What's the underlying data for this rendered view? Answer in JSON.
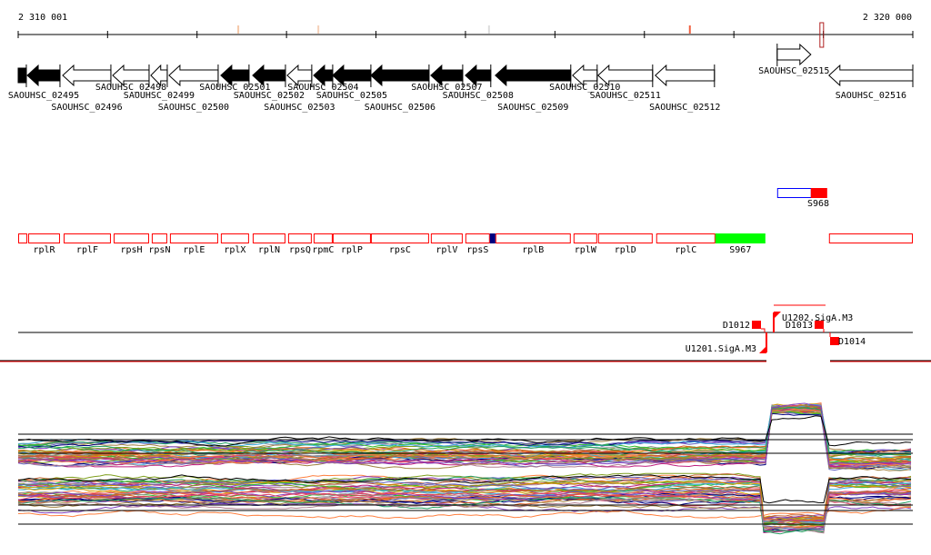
{
  "ruler": {
    "start_label": "2 310 001",
    "end_label": "2 320 000",
    "start": 2310001,
    "end": 2320000,
    "tick_step": 1000,
    "marks": [
      {
        "pos": 2312461,
        "color": "#f5c8a8"
      },
      {
        "pos": 2313356,
        "color": "#f5d0b8"
      },
      {
        "pos": 2315263,
        "color": "#dddddd"
      },
      {
        "pos": 2317508,
        "color": "#f06040"
      },
      {
        "pos": 2318982,
        "color": "#b02020",
        "box": true
      }
    ]
  },
  "genes": [
    {
      "label": "",
      "start": 2310001,
      "end": 2310092,
      "strand": "none",
      "fill": "#000000",
      "row": 0
    },
    {
      "label": "SAOUHSC_02495",
      "start": 2310103,
      "end": 2310468,
      "strand": "-",
      "fill": "#000000",
      "row": 1
    },
    {
      "label": "SAOUHSC_02496",
      "start": 2310499,
      "end": 2311037,
      "strand": "-",
      "fill": "#ffffff",
      "row": 2
    },
    {
      "label": "SAOUHSC_02498",
      "start": 2311058,
      "end": 2311464,
      "strand": "-",
      "fill": "#ffffff",
      "row": 0
    },
    {
      "label": "SAOUHSC_02499",
      "start": 2311484,
      "end": 2311667,
      "strand": "-",
      "fill": "#ffffff",
      "row": 1
    },
    {
      "label": "SAOUHSC_02500",
      "start": 2311687,
      "end": 2312236,
      "strand": "-",
      "fill": "#ffffff",
      "row": 2
    },
    {
      "label": "SAOUHSC_02501",
      "start": 2312266,
      "end": 2312581,
      "strand": "-",
      "fill": "#000000",
      "row": 0
    },
    {
      "label": "SAOUHSC_02502",
      "start": 2312622,
      "end": 2312988,
      "strand": "-",
      "fill": "#000000",
      "row": 1
    },
    {
      "label": "SAOUHSC_02503",
      "start": 2313008,
      "end": 2313282,
      "strand": "-",
      "fill": "#ffffff",
      "row": 2
    },
    {
      "label": "SAOUHSC_02504",
      "start": 2313303,
      "end": 2313516,
      "strand": "-",
      "fill": "#000000",
      "row": 0
    },
    {
      "label": "SAOUHSC_02505",
      "start": 2313516,
      "end": 2313943,
      "strand": "-",
      "fill": "#000000",
      "row": 1
    },
    {
      "label": "SAOUHSC_02506",
      "start": 2313943,
      "end": 2314593,
      "strand": "-",
      "fill": "#000000",
      "row": 2
    },
    {
      "label": "SAOUHSC_02507",
      "start": 2314613,
      "end": 2314969,
      "strand": "-",
      "fill": "#000000",
      "row": 0
    },
    {
      "label": "SAOUHSC_02508",
      "start": 2314999,
      "end": 2315283,
      "strand": "-",
      "fill": "#000000",
      "row": 1
    },
    {
      "label": "SAOUHSC_02509",
      "start": 2315334,
      "end": 2316177,
      "strand": "-",
      "fill": "#000000",
      "row": 2
    },
    {
      "label": "SAOUHSC_02510",
      "start": 2316198,
      "end": 2316472,
      "strand": "-",
      "fill": "#ffffff",
      "row": 0
    },
    {
      "label": "SAOUHSC_02511",
      "start": 2316482,
      "end": 2317092,
      "strand": "-",
      "fill": "#ffffff",
      "row": 1
    },
    {
      "label": "SAOUHSC_02512",
      "start": 2317122,
      "end": 2317783,
      "strand": "-",
      "fill": "#ffffff",
      "row": 2
    },
    {
      "label": "SAOUHSC_02515",
      "start": 2318484,
      "end": 2318860,
      "strand": "+",
      "fill": "#ffffff",
      "row": "up"
    },
    {
      "label": "SAOUHSC_02516",
      "start": 2319063,
      "end": 2320000,
      "strand": "-",
      "fill": "#ffffff",
      "row": 1
    }
  ],
  "s968": {
    "label": "S968",
    "start": 2318484,
    "end": 2318860,
    "red_end": 2319043,
    "outline": "#0000ff",
    "fill": "#ff0000"
  },
  "operons": [
    {
      "label": "",
      "start": 2310001,
      "end": 2310103
    },
    {
      "label": "rplR",
      "start": 2310113,
      "end": 2310468
    },
    {
      "label": "rplF",
      "start": 2310509,
      "end": 2311037
    },
    {
      "label": "rpsH",
      "start": 2311068,
      "end": 2311464
    },
    {
      "label": "rpsN",
      "start": 2311494,
      "end": 2311667
    },
    {
      "label": "rplE",
      "start": 2311697,
      "end": 2312236
    },
    {
      "label": "rplX",
      "start": 2312266,
      "end": 2312581
    },
    {
      "label": "rplN",
      "start": 2312622,
      "end": 2312988
    },
    {
      "label": "rpsQ",
      "start": 2313018,
      "end": 2313282
    },
    {
      "label": "rpmC",
      "start": 2313303,
      "end": 2313516
    },
    {
      "label": "rplP",
      "start": 2313516,
      "end": 2313943
    },
    {
      "label": "rpsC",
      "start": 2313943,
      "end": 2314593
    },
    {
      "label": "rplV",
      "start": 2314613,
      "end": 2314969
    },
    {
      "label": "rpsS",
      "start": 2314999,
      "end": 2315273
    },
    {
      "label": "rplB",
      "start": 2315334,
      "end": 2316177
    },
    {
      "label": "rplW",
      "start": 2316208,
      "end": 2316472
    },
    {
      "label": "rplD",
      "start": 2316482,
      "end": 2317092
    },
    {
      "label": "rplC",
      "start": 2317132,
      "end": 2317793
    },
    {
      "label": "",
      "start": 2319063,
      "end": 2320000
    }
  ],
  "operon_marker": {
    "start": 2315273,
    "end": 2315334,
    "color": "#000080"
  },
  "s967": {
    "label": "S967",
    "start": 2317793,
    "end": 2318352,
    "color": "#00ff00"
  },
  "operon_color": "#ff0000",
  "tss": {
    "D1012": "D1012",
    "D1013": "D1013",
    "D1014": "D1014",
    "U1201": "U1201.SigA.M3",
    "U1202": "U1202.SigA.M3"
  },
  "expression": {
    "palette": [
      "#e06020",
      "#c02080",
      "#80a020",
      "#40b0e0",
      "#a08040",
      "#ff8040",
      "#20a060",
      "#8040c0",
      "#d0a000",
      "#e04060",
      "#6060c0",
      "#b08090",
      "#c06030",
      "#30c030",
      "#000080",
      "#909090"
    ]
  }
}
